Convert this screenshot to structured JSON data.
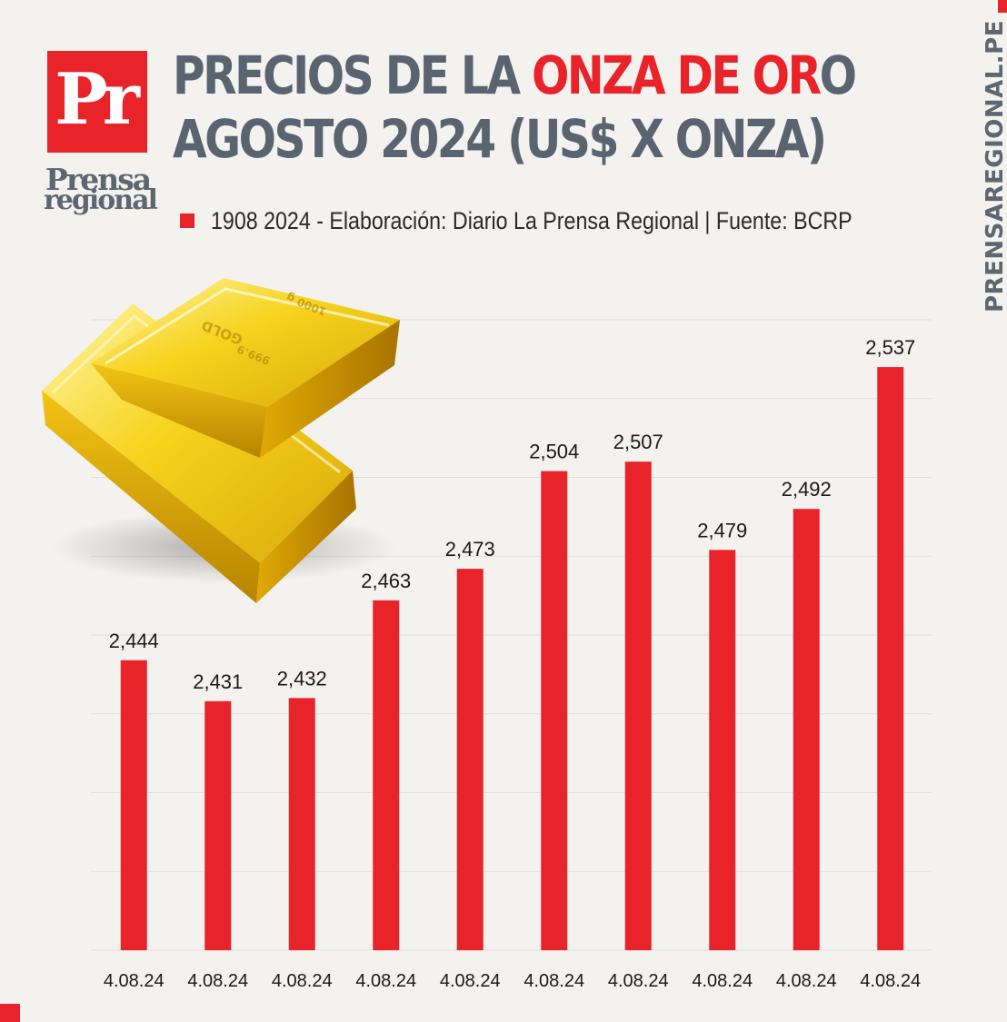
{
  "logo": {
    "mark": "Pr",
    "line1": "Prensa",
    "line2": "regional"
  },
  "title": {
    "line1_pre": "PRECIOS DE LA ",
    "line1_highlight": "ONZA DE OR",
    "line1_post": "O",
    "line2": "AGOSTO 2024 (US$ X ONZA)"
  },
  "subtitle": "1908 2024 - Elaboración: Diario La Prensa Regional | Fuente: BCRP",
  "site": "PRENSAREGIONAL.PE",
  "colors": {
    "accent": "#e8232a",
    "title_gray": "#5a6470",
    "background": "#f4f2ef"
  },
  "chart_data": {
    "type": "bar",
    "title": "PRECIOS DE LA ONZA DE ORO AGOSTO 2024 (US$ X ONZA)",
    "xlabel": "",
    "ylabel": "",
    "categories": [
      "4.08.24",
      "4.08.24",
      "4.08.24",
      "4.08.24",
      "4.08.24",
      "4.08.24",
      "4.08.24",
      "4.08.24",
      "4.08.24",
      "4.08.24"
    ],
    "values": [
      2444,
      2431,
      2432,
      2463,
      2473,
      2504,
      2507,
      2479,
      2492,
      2537
    ],
    "value_labels": [
      "2,444",
      "2,431",
      "2,432",
      "2,463",
      "2,473",
      "2,504",
      "2,507",
      "2,479",
      "2,492",
      "2,537"
    ],
    "ylim": [
      2352,
      2567
    ],
    "grid": true,
    "bar_color": "#e8232a"
  }
}
